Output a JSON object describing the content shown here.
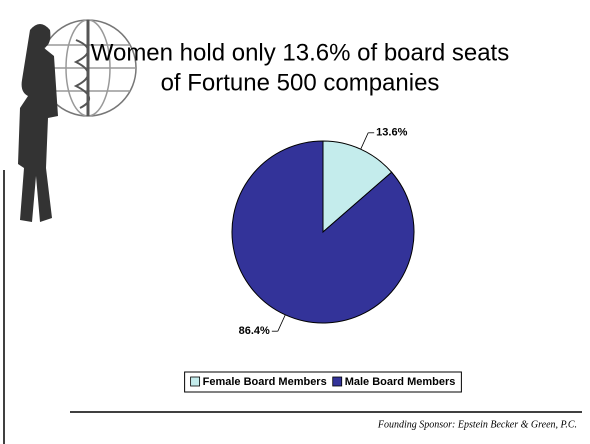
{
  "chart_data": {
    "type": "pie",
    "title": [
      "Women hold only 13.6% of board seats",
      "of Fortune 500 companies"
    ],
    "categories": [
      "Female Board Members",
      "Male Board Members"
    ],
    "values": [
      13.6,
      86.4
    ],
    "value_labels": [
      "13.6%",
      "86.4%"
    ],
    "colors": [
      "#c4ecec",
      "#333399"
    ],
    "legend": "bottom"
  },
  "footer": "Founding Sponsor:  Epstein Becker & Green, P.C."
}
